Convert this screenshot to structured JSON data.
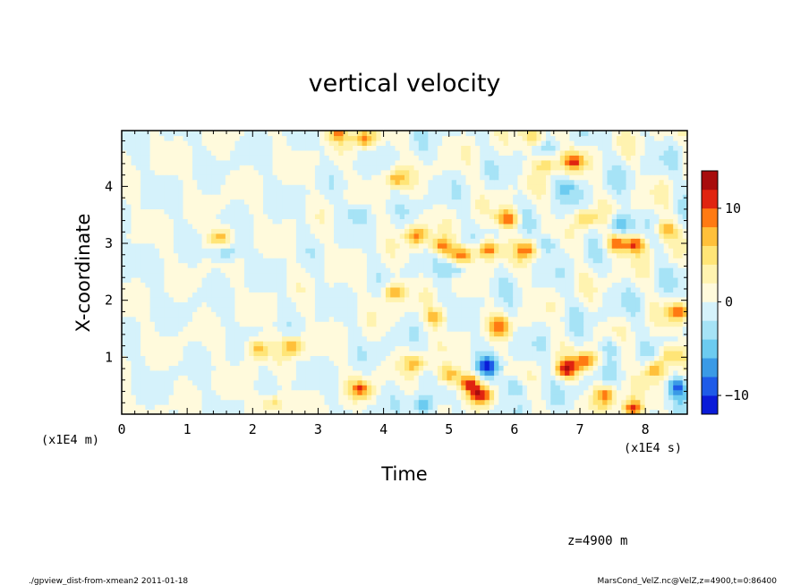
{
  "chart_data": {
    "type": "heatmap",
    "title": "vertical velocity",
    "xlabel": "Time",
    "ylabel": "X-coordinate",
    "x_unit_label": "(x1E4 s)",
    "y_unit_label": "(x1E4 m)",
    "xlim": [
      0,
      8.64
    ],
    "ylim": [
      0,
      4.98
    ],
    "x_ticks": [
      0,
      1,
      2,
      3,
      4,
      5,
      6,
      7,
      8
    ],
    "x_tick_labels": [
      "0",
      "1",
      "2",
      "3",
      "4",
      "5",
      "6",
      "7",
      "8"
    ],
    "y_ticks": [
      1,
      2,
      3,
      4
    ],
    "y_tick_labels": [
      "1",
      "2",
      "3",
      "4"
    ],
    "colorbar": {
      "levels": [
        -12,
        -10,
        -8,
        -6,
        -4,
        -2,
        0,
        2,
        4,
        6,
        8,
        10,
        12
      ],
      "colors": [
        "#0a1bd8",
        "#1e5be8",
        "#3a9ae6",
        "#6ccbf0",
        "#a6e3f6",
        "#d5f2fb",
        "#fffadc",
        "#fff3b0",
        "#ffe577",
        "#ffc03a",
        "#ff7a12",
        "#e02410",
        "#a80d0d"
      ],
      "tick_values": [
        10,
        0,
        -10
      ],
      "tick_labels": [
        "10",
        "0",
        "−10"
      ]
    },
    "features": [
      {
        "x": 1.5,
        "y": 3.1,
        "v": 7
      },
      {
        "x": 2.1,
        "y": 1.15,
        "v": 8
      },
      {
        "x": 2.6,
        "y": 1.2,
        "v": 8
      },
      {
        "x": 3.3,
        "y": 4.95,
        "v": 7
      },
      {
        "x": 3.7,
        "y": 4.85,
        "v": 9
      },
      {
        "x": 3.65,
        "y": 0.45,
        "v": 9
      },
      {
        "x": 4.2,
        "y": 4.15,
        "v": 8
      },
      {
        "x": 4.15,
        "y": 2.15,
        "v": 8
      },
      {
        "x": 4.5,
        "y": 3.15,
        "v": 9
      },
      {
        "x": 4.9,
        "y": 2.95,
        "v": 9
      },
      {
        "x": 4.8,
        "y": 1.7,
        "v": 7
      },
      {
        "x": 4.5,
        "y": 0.9,
        "v": 7
      },
      {
        "x": 5.0,
        "y": 0.7,
        "v": 8
      },
      {
        "x": 5.3,
        "y": 0.55,
        "v": 9
      },
      {
        "x": 5.5,
        "y": 0.35,
        "v": 10
      },
      {
        "x": 5.6,
        "y": 2.9,
        "v": 10
      },
      {
        "x": 5.2,
        "y": 2.8,
        "v": 9
      },
      {
        "x": 5.9,
        "y": 3.45,
        "v": 10
      },
      {
        "x": 5.8,
        "y": 1.55,
        "v": 8
      },
      {
        "x": 6.2,
        "y": 2.9,
        "v": 9
      },
      {
        "x": 6.5,
        "y": 4.4,
        "v": 7
      },
      {
        "x": 6.9,
        "y": 4.45,
        "v": 9
      },
      {
        "x": 6.8,
        "y": 0.8,
        "v": 11
      },
      {
        "x": 7.1,
        "y": 0.95,
        "v": 9
      },
      {
        "x": 7.4,
        "y": 0.35,
        "v": 8
      },
      {
        "x": 7.8,
        "y": 0.1,
        "v": 11
      },
      {
        "x": 7.55,
        "y": 3.0,
        "v": 9
      },
      {
        "x": 7.85,
        "y": 3.0,
        "v": 10
      },
      {
        "x": 8.15,
        "y": 0.8,
        "v": 8
      },
      {
        "x": 8.5,
        "y": 1.8,
        "v": 9
      },
      {
        "x": 8.3,
        "y": 3.25,
        "v": 7
      },
      {
        "x": 7.1,
        "y": 3.45,
        "v": 7
      },
      {
        "x": 6.3,
        "y": 4.9,
        "v": 6
      },
      {
        "x": 2.3,
        "y": 0.2,
        "v": 6
      },
      {
        "x": 8.4,
        "y": 1.05,
        "v": 7
      },
      {
        "x": 1.6,
        "y": 2.85,
        "v": -5
      },
      {
        "x": 4.6,
        "y": 0.15,
        "v": -6
      },
      {
        "x": 5.6,
        "y": 0.85,
        "v": -8
      },
      {
        "x": 5.1,
        "y": 2.55,
        "v": -5
      },
      {
        "x": 7.6,
        "y": 3.35,
        "v": -7
      },
      {
        "x": 8.5,
        "y": 0.5,
        "v": -7
      },
      {
        "x": 6.0,
        "y": 0.5,
        "v": -5
      },
      {
        "x": 7.5,
        "y": 1.2,
        "v": -4
      },
      {
        "x": 3.6,
        "y": 3.55,
        "v": -4
      },
      {
        "x": 6.5,
        "y": 3.0,
        "v": -5
      },
      {
        "x": 6.8,
        "y": 4.0,
        "v": -4
      }
    ]
  },
  "annotations": {
    "level_label": "z=4900  m",
    "footer_left": "./gpview_dist-from-xmean2  2011-01-18",
    "footer_right": "MarsCond_VelZ.nc@VelZ,z=4900,t=0:86400"
  }
}
